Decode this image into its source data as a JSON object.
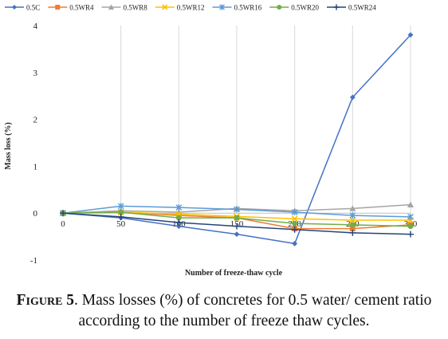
{
  "chart_data": {
    "type": "line",
    "title": "",
    "xlabel": "Number of freeze-thaw cycle",
    "ylabel": "Mass loss (%)",
    "x": [
      0,
      50,
      100,
      150,
      200,
      250,
      300
    ],
    "x_tick_labels": [
      "0",
      "50",
      "100",
      "150",
      "200",
      "250",
      "300"
    ],
    "y_ticks": [
      4,
      3,
      2,
      1,
      0,
      -1
    ],
    "y_tick_labels": [
      "4",
      "3",
      "2",
      "1",
      "0",
      "-1"
    ],
    "ylim": [
      -1,
      4
    ],
    "grid": "vertical",
    "legend_position": "top",
    "series": [
      {
        "name": "0.5C",
        "color": "#4472c4",
        "marker": "diamond",
        "values": [
          0,
          -0.1,
          -0.28,
          -0.45,
          -0.65,
          2.47,
          3.8
        ]
      },
      {
        "name": "0.5WR4",
        "color": "#ed7d31",
        "marker": "square",
        "values": [
          0,
          0.02,
          -0.05,
          -0.1,
          -0.33,
          -0.33,
          -0.25
        ]
      },
      {
        "name": "0.5WR8",
        "color": "#a5a5a5",
        "marker": "triangle",
        "values": [
          0,
          0.05,
          0.02,
          0.1,
          0.05,
          0.1,
          0.18
        ]
      },
      {
        "name": "0.5WR12",
        "color": "#ffc000",
        "marker": "x",
        "values": [
          0,
          0.02,
          -0.02,
          -0.07,
          -0.12,
          -0.15,
          -0.15
        ]
      },
      {
        "name": "0.5WR16",
        "color": "#5b9bd5",
        "marker": "asterisk",
        "values": [
          0,
          0.15,
          0.12,
          0.08,
          0.02,
          -0.05,
          -0.08
        ]
      },
      {
        "name": "0.5WR20",
        "color": "#70ad47",
        "marker": "circle",
        "values": [
          0,
          0.02,
          -0.1,
          -0.1,
          -0.22,
          -0.25,
          -0.28
        ]
      },
      {
        "name": "0.5WR24",
        "color": "#264478",
        "marker": "plus",
        "values": [
          0,
          -0.08,
          -0.2,
          -0.28,
          -0.35,
          -0.42,
          -0.45
        ]
      }
    ]
  },
  "caption": {
    "label": "Figure 5",
    "text": ". Mass losses (%) of concretes for 0.5 water/ cement ratio according to the number of freeze thaw cycles."
  }
}
